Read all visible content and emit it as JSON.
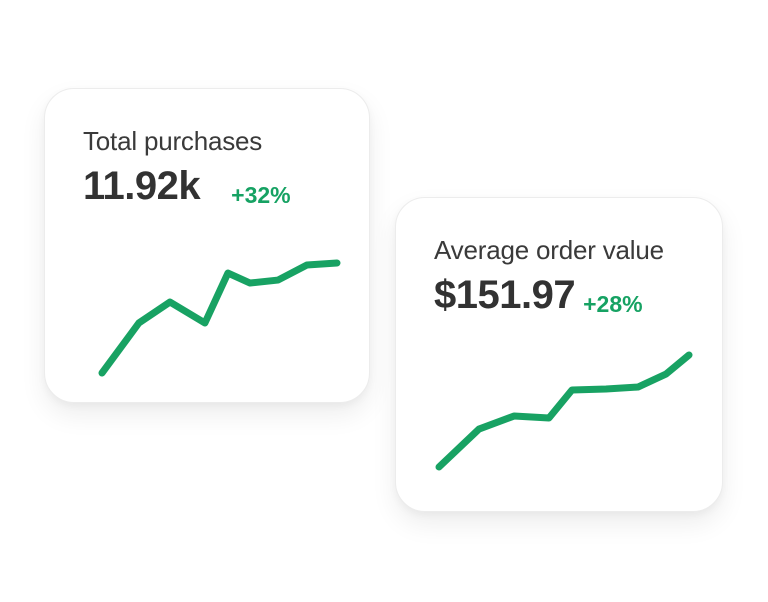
{
  "page": {
    "background_color": "#ffffff"
  },
  "colors": {
    "card_background": "#ffffff",
    "card_border": "#ececec",
    "title_text": "#3a3a3a",
    "value_text": "#323232",
    "positive_green": "#16a263"
  },
  "cards": [
    {
      "title": "Total purchases",
      "value": "11.92k",
      "delta": "+32%",
      "chart_data": {
        "type": "line",
        "title": "",
        "xlabel": "",
        "ylabel": "",
        "ylim": [
          0,
          100
        ],
        "grid": false,
        "axes_visible": false,
        "legend": "none",
        "line_color": "#18a263",
        "stroke_width_px": 7,
        "series": [
          {
            "name": "Total purchases trend",
            "x_percent": [
              0,
              15.7,
              28.9,
              43.8,
              53.6,
              63.0,
              74.9,
              87.2,
              100
            ],
            "values": [
              0,
              45.5,
              64.5,
              45.5,
              90.9,
              81.8,
              84.5,
              98.2,
              100
            ]
          }
        ]
      }
    },
    {
      "title": "Average order value",
      "value": "$151.97",
      "delta": "+28%",
      "chart_data": {
        "type": "line",
        "title": "",
        "xlabel": "",
        "ylabel": "",
        "ylim": [
          0,
          100
        ],
        "grid": false,
        "axes_visible": false,
        "legend": "none",
        "line_color": "#18a263",
        "stroke_width_px": 7,
        "series": [
          {
            "name": "Average order value trend",
            "x_percent": [
              0,
              16.0,
              30.0,
              44.0,
              53.2,
              66.8,
              79.6,
              90.8,
              100
            ],
            "values": [
              0,
              33.9,
              45.5,
              43.8,
              68.8,
              69.6,
              71.4,
              83.0,
              100
            ]
          }
        ]
      }
    }
  ]
}
